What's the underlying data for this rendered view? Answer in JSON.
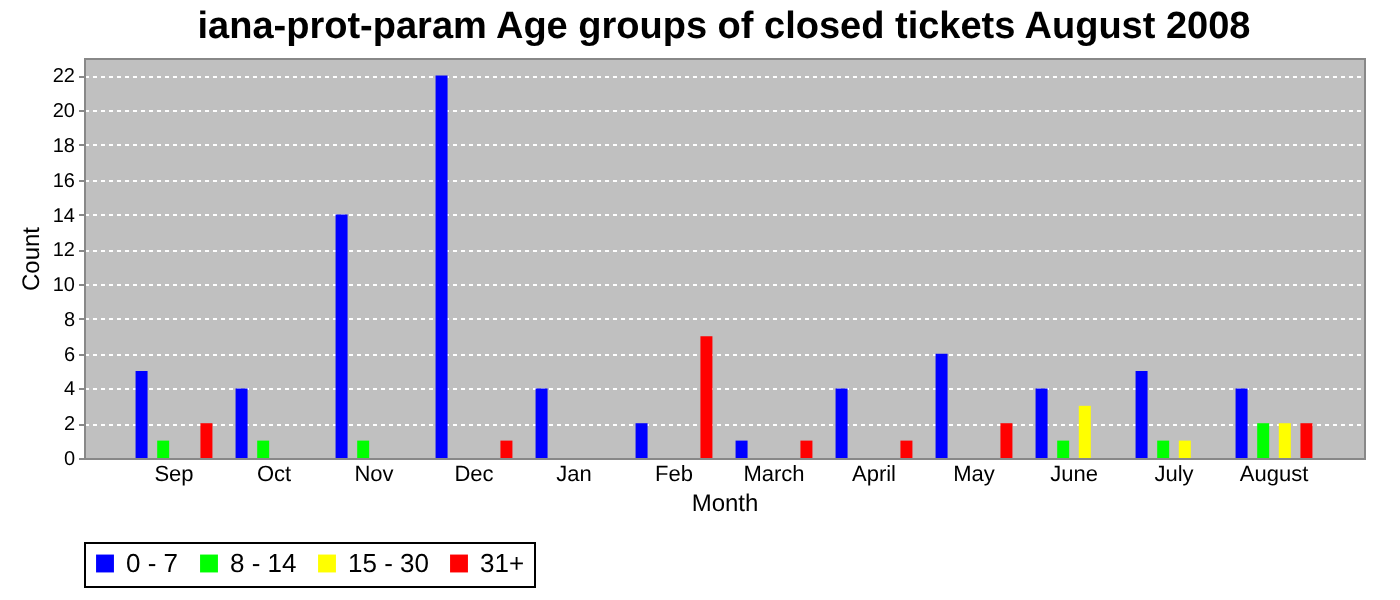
{
  "chart_data": {
    "type": "bar",
    "title": "iana-prot-param Age groups of closed tickets August 2008",
    "xlabel": "Month",
    "ylabel": "Count",
    "categories": [
      "Sep",
      "Oct",
      "Nov",
      "Dec",
      "Jan",
      "Feb",
      "March",
      "April",
      "May",
      "June",
      "July",
      "August"
    ],
    "series": [
      {
        "name": "0 - 7",
        "color": "#0000ff",
        "values": [
          5,
          4,
          14,
          22,
          4,
          2,
          1,
          4,
          6,
          4,
          5,
          4
        ]
      },
      {
        "name": "8 - 14",
        "color": "#00ff00",
        "values": [
          1,
          1,
          1,
          0,
          0,
          0,
          0,
          0,
          0,
          1,
          1,
          2
        ]
      },
      {
        "name": "15 - 30",
        "color": "#ffff00",
        "values": [
          0,
          0,
          0,
          0,
          0,
          0,
          0,
          0,
          0,
          3,
          1,
          2
        ]
      },
      {
        "name": "31+",
        "color": "#ff0000",
        "values": [
          2,
          0,
          0,
          1,
          0,
          7,
          1,
          1,
          2,
          0,
          0,
          2
        ]
      }
    ],
    "ylim": [
      0,
      23
    ],
    "yticks": [
      0,
      2,
      4,
      6,
      8,
      10,
      12,
      14,
      16,
      18,
      20,
      22
    ],
    "grid": "y",
    "legend": "bottom"
  }
}
